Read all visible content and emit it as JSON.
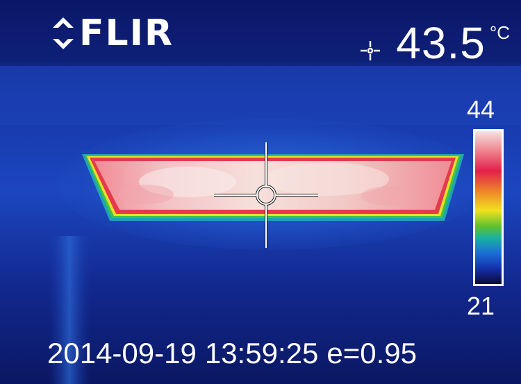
{
  "brand": {
    "name": "FLIR",
    "logo_icon": "flir-chevron-logo-icon"
  },
  "measurement": {
    "spot_icon": "crosshair-plus-icon",
    "value": "43.5",
    "unit": "°C"
  },
  "color_scale": {
    "max_label": "44",
    "min_label": "21",
    "palette": [
      "#f4e3e3",
      "#ee7a86",
      "#e3204a",
      "#ef8a27",
      "#f0e11f",
      "#62c22d",
      "#19b2a3",
      "#1a6cd6",
      "#1430a8",
      "#0a0a3a"
    ]
  },
  "info": {
    "date": "2014-09-19",
    "time": "13:59:25",
    "emissivity": "e=0.95"
  },
  "reticle_icon": "spot-meter-reticle-icon"
}
